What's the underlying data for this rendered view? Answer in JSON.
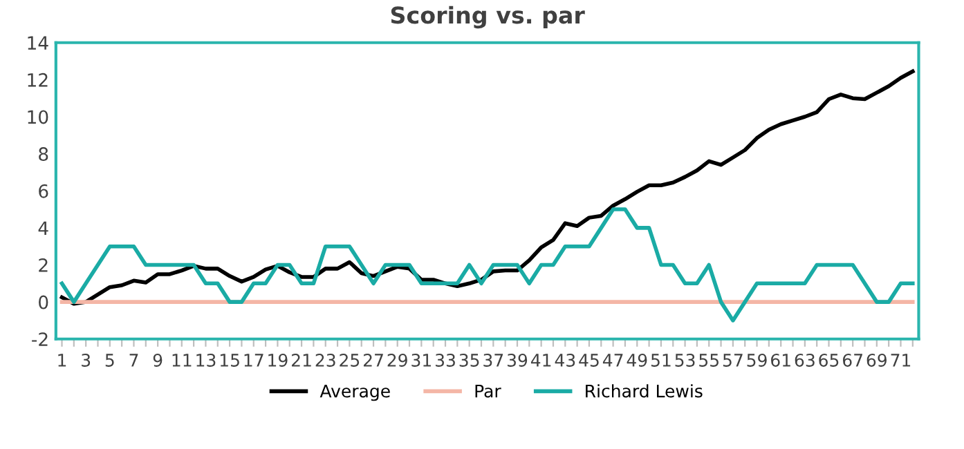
{
  "chart_data": {
    "type": "line",
    "title": "Scoring vs. par",
    "categories": [
      "1",
      null,
      "3",
      null,
      "5",
      null,
      "7",
      null,
      "9",
      null,
      "11",
      null,
      "13",
      null,
      "15",
      null,
      "17",
      null,
      "19",
      null,
      "21",
      null,
      "23",
      null,
      "25",
      null,
      "27",
      null,
      "29",
      null,
      "31",
      null,
      "33",
      null,
      "35",
      null,
      "37",
      null,
      "39",
      null,
      "41",
      null,
      "43",
      null,
      "45",
      null,
      "47",
      null,
      "49",
      null,
      "51",
      null,
      "53",
      null,
      "55",
      null,
      "57",
      null,
      "59",
      null,
      "61",
      null,
      "63",
      null,
      "65",
      null,
      "67",
      null,
      "69",
      null,
      "71",
      null
    ],
    "series": [
      {
        "name": "Average",
        "color": "#000000",
        "values": [
          0.25,
          -0.1,
          0,
          0.4,
          0.8,
          0.9,
          1.15,
          1.05,
          1.5,
          1.5,
          1.7,
          1.95,
          1.8,
          1.8,
          1.4,
          1.1,
          1.35,
          1.75,
          1.95,
          1.6,
          1.35,
          1.35,
          1.8,
          1.8,
          2.15,
          1.55,
          1.4,
          1.65,
          1.9,
          1.8,
          1.2,
          1.2,
          1.0,
          0.85,
          1.0,
          1.2,
          1.65,
          1.7,
          1.7,
          2.25,
          2.95,
          3.35,
          4.25,
          4.1,
          4.55,
          4.65,
          5.2,
          5.55,
          5.95,
          6.3,
          6.3,
          6.45,
          6.75,
          7.1,
          7.6,
          7.4,
          7.8,
          8.2,
          8.85,
          9.3,
          9.6,
          9.8,
          10.0,
          10.25,
          10.95,
          11.2,
          11.0,
          10.95,
          11.3,
          11.65,
          12.1,
          12.45
        ]
      },
      {
        "name": "Par",
        "color": "#f4b6a6",
        "values": [
          0,
          0,
          0,
          0,
          0,
          0,
          0,
          0,
          0,
          0,
          0,
          0,
          0,
          0,
          0,
          0,
          0,
          0,
          0,
          0,
          0,
          0,
          0,
          0,
          0,
          0,
          0,
          0,
          0,
          0,
          0,
          0,
          0,
          0,
          0,
          0,
          0,
          0,
          0,
          0,
          0,
          0,
          0,
          0,
          0,
          0,
          0,
          0,
          0,
          0,
          0,
          0,
          0,
          0,
          0,
          0,
          0,
          0,
          0,
          0,
          0,
          0,
          0,
          0,
          0,
          0,
          0,
          0,
          0,
          0,
          0,
          0
        ]
      },
      {
        "name": "Richard Lewis",
        "color": "#1aaba5",
        "values": [
          1,
          0,
          1,
          2,
          3,
          3,
          3,
          2,
          2,
          2,
          2,
          2,
          1,
          1,
          0,
          0,
          1,
          1,
          2,
          2,
          1,
          1,
          3,
          3,
          3,
          2,
          1,
          2,
          2,
          2,
          1,
          1,
          1,
          1,
          2,
          1,
          2,
          2,
          2,
          1,
          2,
          2,
          3,
          3,
          3,
          4,
          5,
          5,
          4,
          4,
          2,
          2,
          1,
          1,
          2,
          0,
          -1,
          0,
          1,
          1,
          1,
          1,
          1,
          2,
          2,
          2,
          2,
          1,
          0,
          0,
          1,
          1
        ]
      }
    ],
    "ylim": [
      -2,
      14
    ],
    "yticks": [
      -2,
      0,
      2,
      4,
      6,
      8,
      10,
      12,
      14
    ],
    "grid": false,
    "legend": "bottom",
    "marker": "none",
    "line_style": "solid"
  }
}
